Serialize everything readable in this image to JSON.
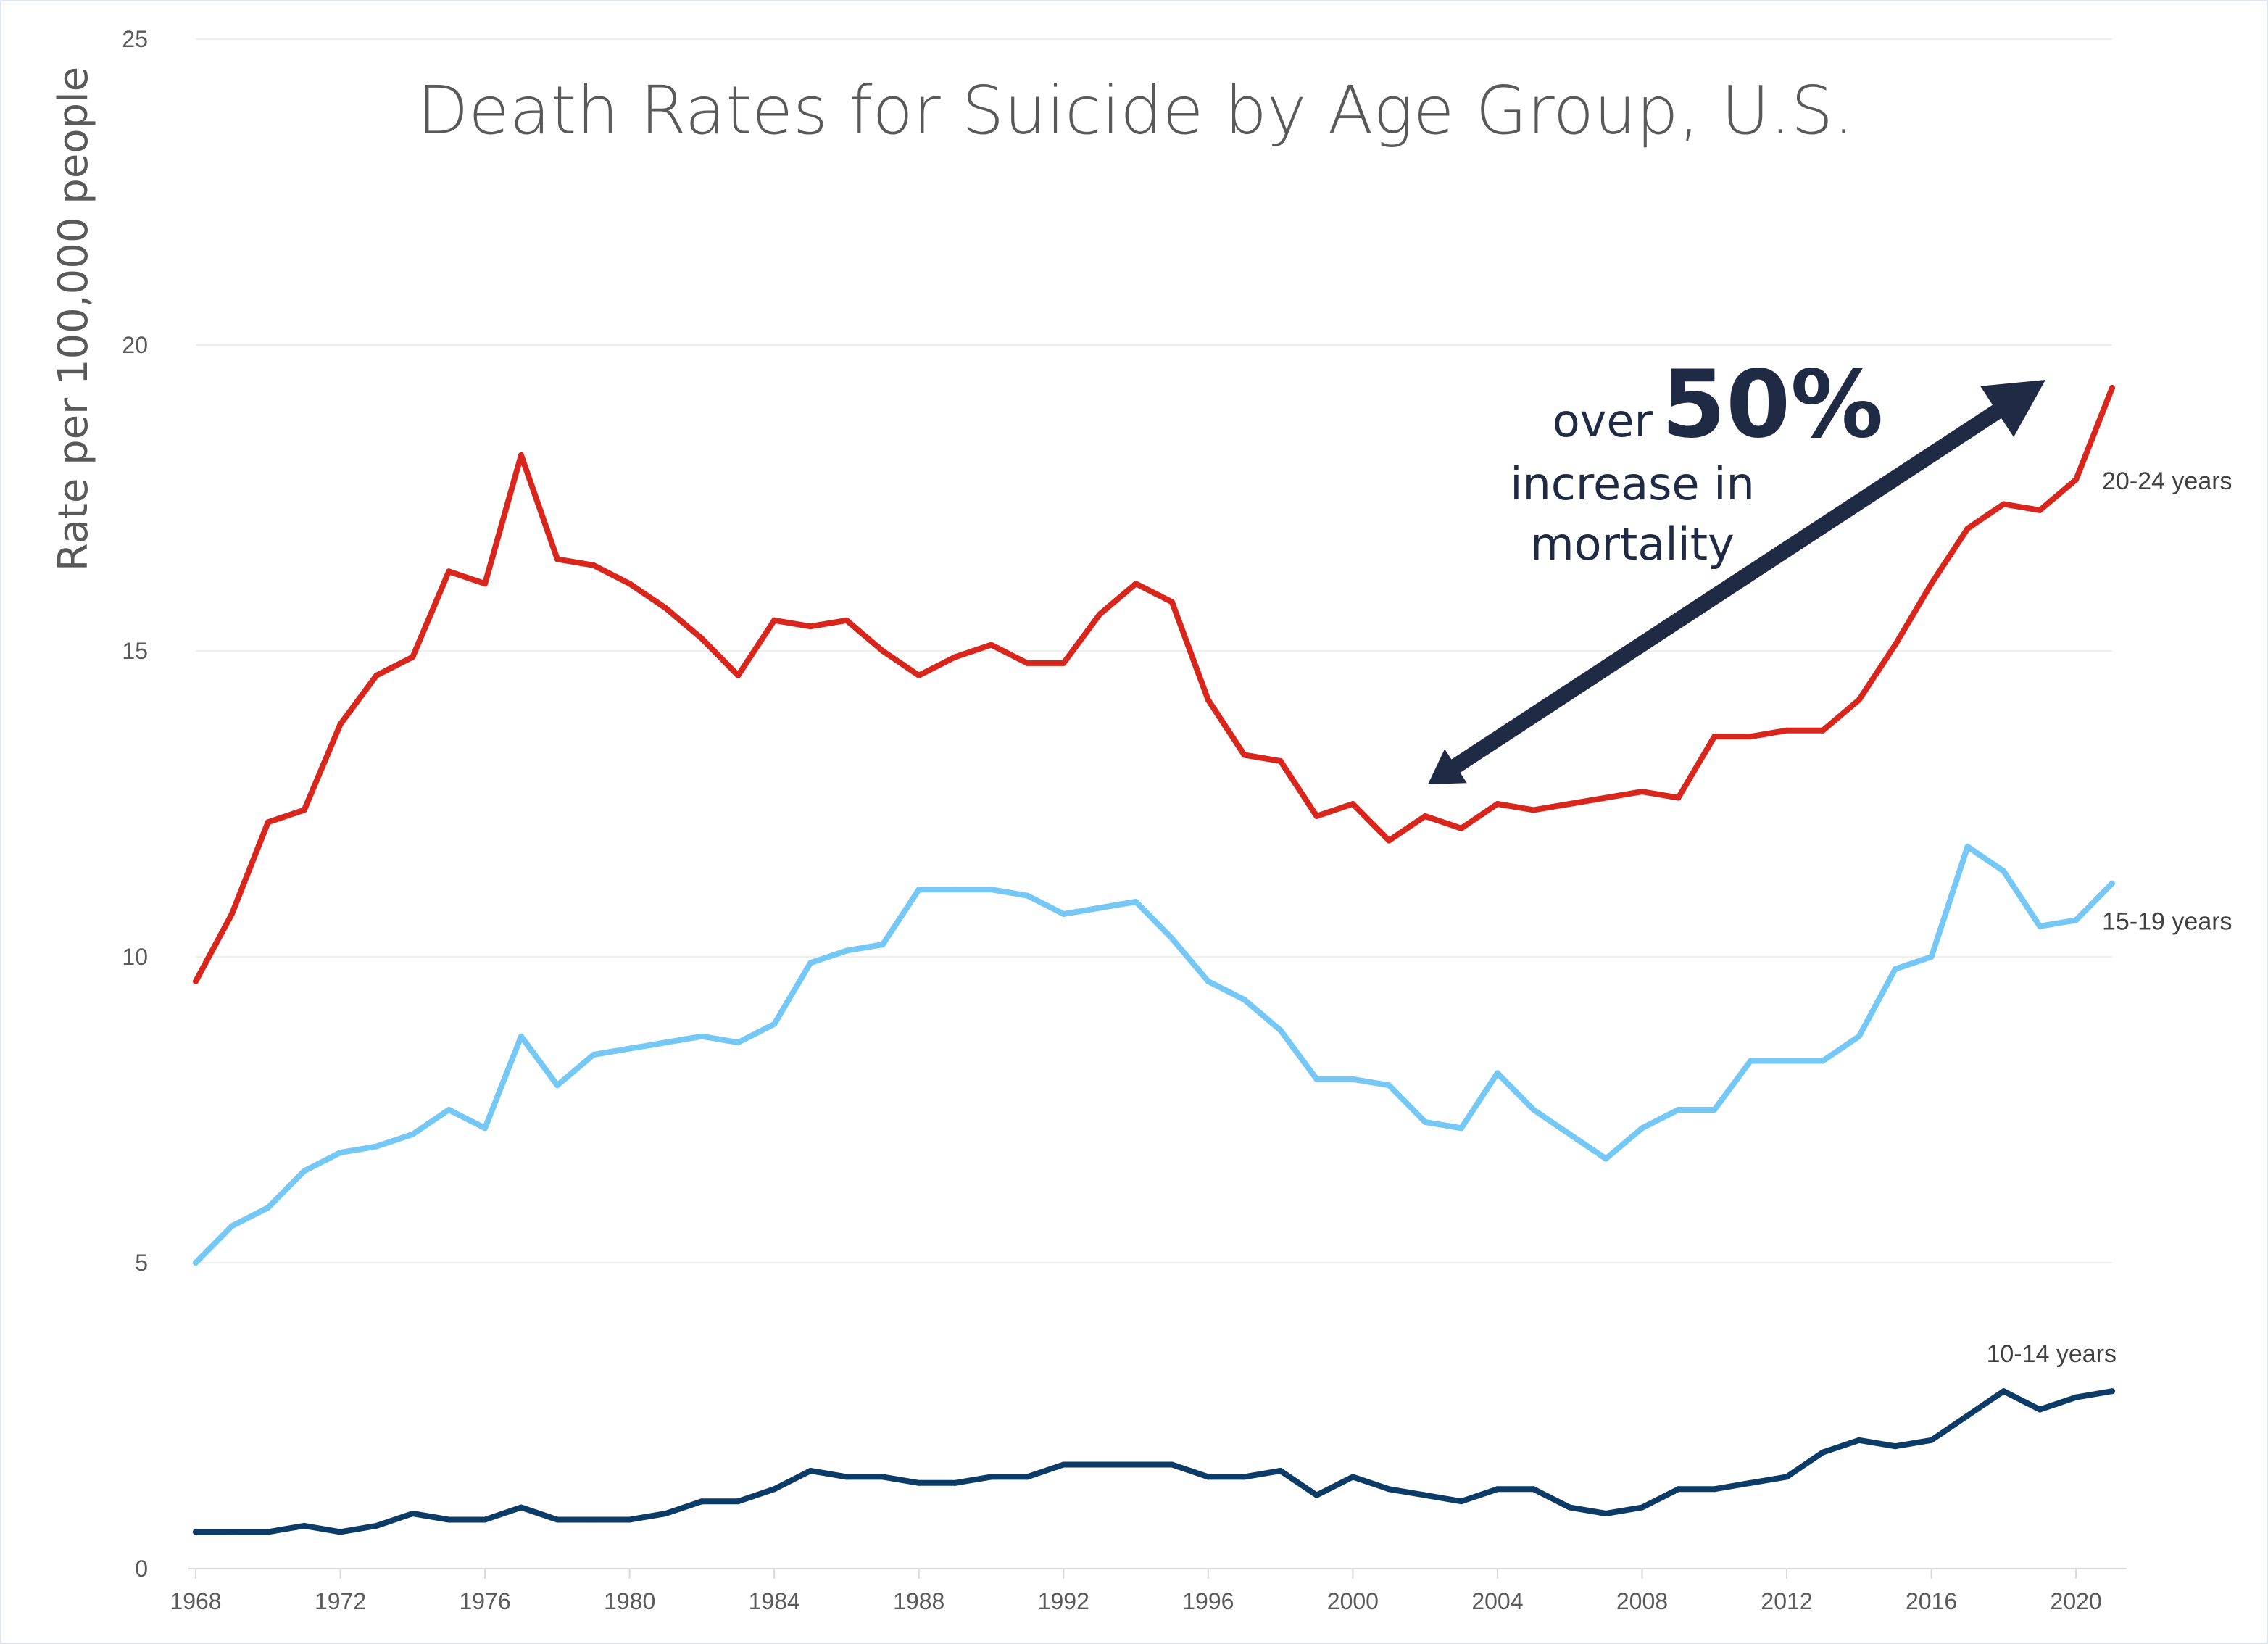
{
  "chart_data": {
    "type": "line",
    "title": "Death Rates for Suicide by Age Group, U.S.",
    "ylabel": "Rate per 100,000 people",
    "xlabel": "",
    "ylim": [
      0,
      25
    ],
    "xlim": [
      1968,
      2021
    ],
    "y_ticks": [
      "0",
      "5",
      "10",
      "15",
      "20",
      "25"
    ],
    "x_ticks": [
      "1968",
      "1972",
      "1976",
      "1980",
      "1984",
      "1988",
      "1992",
      "1996",
      "2000",
      "2004",
      "2008",
      "2012",
      "2016",
      "2020"
    ],
    "grid": "horizontal",
    "x": [
      1968,
      1969,
      1970,
      1971,
      1972,
      1973,
      1974,
      1975,
      1976,
      1977,
      1978,
      1979,
      1980,
      1981,
      1982,
      1983,
      1984,
      1985,
      1986,
      1987,
      1988,
      1989,
      1990,
      1991,
      1992,
      1993,
      1994,
      1995,
      1996,
      1997,
      1998,
      1999,
      2000,
      2001,
      2002,
      2003,
      2004,
      2005,
      2006,
      2007,
      2008,
      2009,
      2010,
      2011,
      2012,
      2013,
      2014,
      2015,
      2016,
      2017,
      2018,
      2019,
      2020,
      2021
    ],
    "series": [
      {
        "name": "20-24 years",
        "color": "#d9261c",
        "values": [
          9.6,
          10.7,
          12.2,
          12.4,
          13.8,
          14.6,
          14.9,
          16.3,
          16.1,
          18.2,
          16.5,
          16.4,
          16.1,
          15.7,
          15.2,
          14.6,
          15.5,
          15.4,
          15.5,
          15.0,
          14.6,
          14.9,
          15.1,
          14.8,
          14.8,
          15.6,
          16.1,
          15.8,
          14.2,
          13.3,
          13.2,
          12.3,
          12.5,
          11.9,
          12.3,
          12.1,
          12.5,
          12.4,
          12.5,
          12.6,
          12.7,
          12.6,
          13.6,
          13.6,
          13.7,
          13.7,
          14.2,
          15.1,
          16.1,
          17.0,
          17.4,
          17.3,
          17.8,
          19.3
        ]
      },
      {
        "name": "15-19 years",
        "color": "#75c8f5",
        "values": [
          5.0,
          5.6,
          5.9,
          6.5,
          6.8,
          6.9,
          7.1,
          7.5,
          7.2,
          8.7,
          7.9,
          8.4,
          8.5,
          8.6,
          8.7,
          8.6,
          8.9,
          9.9,
          10.1,
          10.2,
          11.1,
          11.1,
          11.1,
          11.0,
          10.7,
          10.8,
          10.9,
          10.3,
          9.6,
          9.3,
          8.8,
          8.0,
          8.0,
          7.9,
          7.3,
          7.2,
          8.1,
          7.5,
          7.1,
          6.7,
          7.2,
          7.5,
          7.5,
          8.3,
          8.3,
          8.3,
          8.7,
          9.8,
          10.0,
          11.8,
          11.4,
          10.5,
          10.6,
          11.2
        ]
      },
      {
        "name": "10-14 years",
        "color": "#0b3b66",
        "values": [
          0.6,
          0.6,
          0.6,
          0.7,
          0.6,
          0.7,
          0.9,
          0.8,
          0.8,
          1.0,
          0.8,
          0.8,
          0.8,
          0.9,
          1.1,
          1.1,
          1.3,
          1.6,
          1.5,
          1.5,
          1.4,
          1.4,
          1.5,
          1.5,
          1.7,
          1.7,
          1.7,
          1.7,
          1.5,
          1.5,
          1.6,
          1.2,
          1.5,
          1.3,
          1.2,
          1.1,
          1.3,
          1.3,
          1.0,
          0.9,
          1.0,
          1.3,
          1.3,
          1.4,
          1.5,
          1.9,
          2.1,
          2.0,
          2.1,
          2.5,
          2.9,
          2.6,
          2.8,
          2.9
        ]
      }
    ],
    "annotations": {
      "over": "over",
      "percent": "50%",
      "line2": "increase in",
      "line3": "mortality",
      "arrow_color": "#1f2a44"
    }
  }
}
